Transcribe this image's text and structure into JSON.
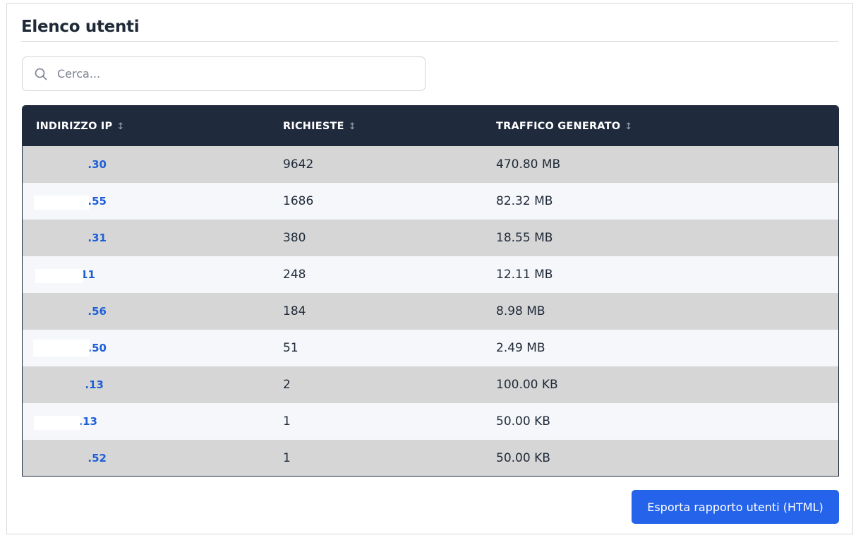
{
  "page": {
    "title": "Elenco utenti"
  },
  "search": {
    "placeholder": "Cerca...",
    "value": ""
  },
  "table": {
    "columns": [
      {
        "label": "INDIRIZZO IP",
        "sort_icon": "↕"
      },
      {
        "label": "RICHIESTE",
        "sort_icon": "↕"
      },
      {
        "label": "TRAFFICO GENERATO",
        "sort_icon": "↕"
      }
    ],
    "rows": [
      {
        "ip": ".30",
        "requests": "9642",
        "traffic": "470.80 MB"
      },
      {
        "ip": ".55",
        "requests": "1686",
        "traffic": "82.32 MB"
      },
      {
        "ip": ".31",
        "requests": "380",
        "traffic": "18.55 MB"
      },
      {
        "ip": ".11",
        "requests": "248",
        "traffic": "12.11 MB"
      },
      {
        "ip": ".56",
        "requests": "184",
        "traffic": "8.98 MB"
      },
      {
        "ip": ".50",
        "requests": "51",
        "traffic": "2.49 MB"
      },
      {
        "ip": ".13",
        "requests": "2",
        "traffic": "100.00 KB"
      },
      {
        "ip": ".13",
        "requests": "1",
        "traffic": "50.00 KB"
      },
      {
        "ip": ".52",
        "requests": "1",
        "traffic": "50.00 KB"
      }
    ]
  },
  "actions": {
    "export_label": "Esporta rapporto utenti (HTML)"
  },
  "colors": {
    "header_bg": "#1f2a3c",
    "link": "#1f5fd6",
    "button": "#2563eb",
    "row_odd": "#d6d6d6",
    "row_even": "#f5f7fa"
  },
  "icons": {
    "search": "search-icon",
    "sort": "sort-icon"
  }
}
